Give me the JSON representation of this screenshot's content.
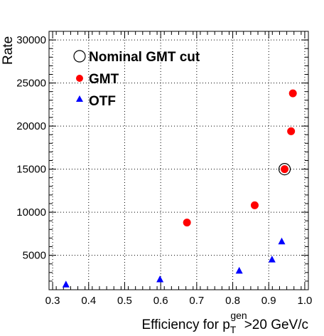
{
  "chart_data": {
    "type": "scatter",
    "xlabel": {
      "main": "Efficiency for p",
      "sub": "T",
      "sup": "gen",
      "rest": ">20 GeV/c"
    },
    "ylabel": "Rate",
    "xlim": [
      0.29,
      1.01
    ],
    "ylim": [
      1000,
      31000
    ],
    "x_ticks": [
      "0.3",
      "0.4",
      "0.5",
      "0.6",
      "0.7",
      "0.8",
      "0.9",
      "1.0"
    ],
    "y_ticks": [
      "5000",
      "10000",
      "15000",
      "20000",
      "25000",
      "30000"
    ],
    "grid": true,
    "legend_position": "top-left",
    "series": [
      {
        "name": "GMT",
        "marker": "circle",
        "color": "#ff0000",
        "x": [
          0.673,
          0.861,
          0.944,
          0.962,
          0.967
        ],
        "y": [
          8800,
          10800,
          15000,
          19400,
          23800
        ]
      },
      {
        "name": "OTF",
        "marker": "triangle",
        "color": "#0000ff",
        "x": [
          0.337,
          0.598,
          0.818,
          0.909,
          0.936
        ],
        "y": [
          1600,
          2200,
          3200,
          4500,
          6600
        ]
      },
      {
        "name": "Nominal GMT cut",
        "marker": "open-circle",
        "color": "#000000",
        "x": [
          0.944
        ],
        "y": [
          15000
        ]
      }
    ]
  }
}
